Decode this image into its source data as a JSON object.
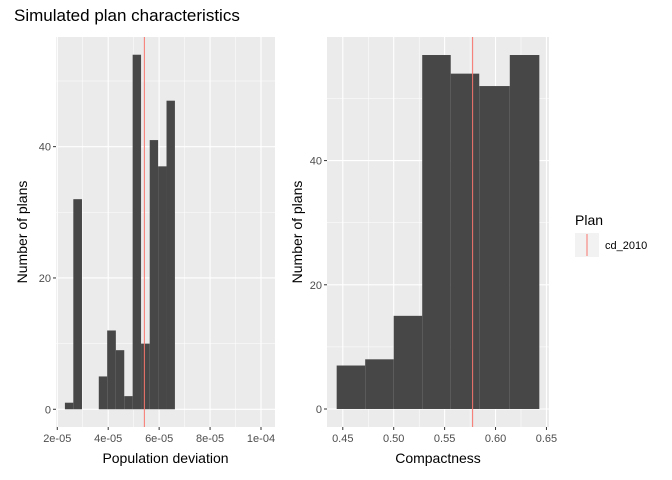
{
  "page": {
    "title": "Simulated plan characteristics"
  },
  "legend": {
    "title": "Plan",
    "label": "cd_2010",
    "color": "#F8766D"
  },
  "colors": {
    "panel_bg": "#EBEBEB",
    "grid_major": "#FFFFFF",
    "bar_fill": "#474747",
    "tick": "#333333",
    "reference_line": "#F8766D"
  },
  "chart_data": [
    {
      "type": "bar",
      "subtype": "histogram",
      "xlabel": "Population deviation",
      "ylabel": "Number of plans",
      "xlim": [
        1.95e-05,
        0.0001055
      ],
      "ylim": [
        -2.7,
        56.7
      ],
      "x_ticks": [
        2e-05,
        4e-05,
        6e-05,
        8e-05,
        0.0001
      ],
      "x_tick_labels": [
        "2e-05",
        "4e-05",
        "6e-05",
        "8e-05",
        "1e-04"
      ],
      "y_ticks": [
        0,
        20,
        40
      ],
      "y_tick_labels": [
        "0",
        "20",
        "40"
      ],
      "bins": [
        {
          "x0": 2.3e-05,
          "x1": 2.63e-05,
          "count": 1
        },
        {
          "x0": 2.63e-05,
          "x1": 2.97e-05,
          "count": 32
        },
        {
          "x0": 2.97e-05,
          "x1": 3.3e-05,
          "count": 0
        },
        {
          "x0": 3.3e-05,
          "x1": 3.63e-05,
          "count": 0
        },
        {
          "x0": 3.63e-05,
          "x1": 3.96e-05,
          "count": 5
        },
        {
          "x0": 3.96e-05,
          "x1": 4.3e-05,
          "count": 12
        },
        {
          "x0": 4.3e-05,
          "x1": 4.63e-05,
          "count": 9
        },
        {
          "x0": 4.63e-05,
          "x1": 4.96e-05,
          "count": 2
        },
        {
          "x0": 4.96e-05,
          "x1": 5.29e-05,
          "count": 54
        },
        {
          "x0": 5.29e-05,
          "x1": 5.63e-05,
          "count": 10
        },
        {
          "x0": 5.63e-05,
          "x1": 5.96e-05,
          "count": 41
        },
        {
          "x0": 5.96e-05,
          "x1": 6.29e-05,
          "count": 37
        },
        {
          "x0": 6.29e-05,
          "x1": 6.62e-05,
          "count": 47
        }
      ],
      "reference_line": {
        "series": "cd_2010",
        "x": 5.42e-05
      }
    },
    {
      "type": "bar",
      "subtype": "histogram",
      "xlabel": "Compactness",
      "ylabel": "Number of plans",
      "xlim": [
        0.4345,
        0.6525
      ],
      "ylim": [
        -2.9,
        59.9
      ],
      "x_ticks": [
        0.45,
        0.5,
        0.55,
        0.6,
        0.65
      ],
      "x_tick_labels": [
        "0.45",
        "0.50",
        "0.55",
        "0.60",
        "0.65"
      ],
      "y_ticks": [
        0,
        20,
        40
      ],
      "y_tick_labels": [
        "0",
        "20",
        "40"
      ],
      "bins": [
        {
          "x0": 0.444,
          "x1": 0.472,
          "count": 7
        },
        {
          "x0": 0.472,
          "x1": 0.5,
          "count": 8
        },
        {
          "x0": 0.5,
          "x1": 0.528,
          "count": 15
        },
        {
          "x0": 0.528,
          "x1": 0.556,
          "count": 57
        },
        {
          "x0": 0.556,
          "x1": 0.584,
          "count": 54
        },
        {
          "x0": 0.584,
          "x1": 0.614,
          "count": 52
        },
        {
          "x0": 0.614,
          "x1": 0.643,
          "count": 57
        }
      ],
      "reference_line": {
        "series": "cd_2010",
        "x": 0.5775
      }
    }
  ]
}
